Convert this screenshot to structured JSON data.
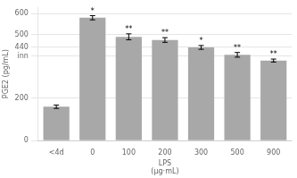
{
  "chart_data": {
    "type": "bar",
    "categories": [
      "<4d",
      "0",
      "100",
      "200",
      "300",
      "500",
      "900"
    ],
    "values": [
      160,
      580,
      490,
      475,
      440,
      405,
      378
    ],
    "errors": [
      8,
      10,
      14,
      11,
      9,
      11,
      7
    ],
    "color": "#a8a8a8",
    "xlabel": "LPS\n(μg·mL)",
    "ylabel": "PGE2 (pg/mL)",
    "ylim": [
      0,
      630
    ],
    "yticks": [
      0,
      200,
      {
        "value": 400,
        "label": "inn"
      },
      440,
      500,
      600
    ],
    "grid": "y",
    "annotations": [
      {
        "category": "0",
        "text": "*"
      },
      {
        "category": "100",
        "text": "**"
      },
      {
        "category": "200",
        "text": "**"
      },
      {
        "category": "300",
        "text": "*"
      },
      {
        "category": "500",
        "text": "**"
      },
      {
        "category": "900",
        "text": "**"
      }
    ]
  }
}
